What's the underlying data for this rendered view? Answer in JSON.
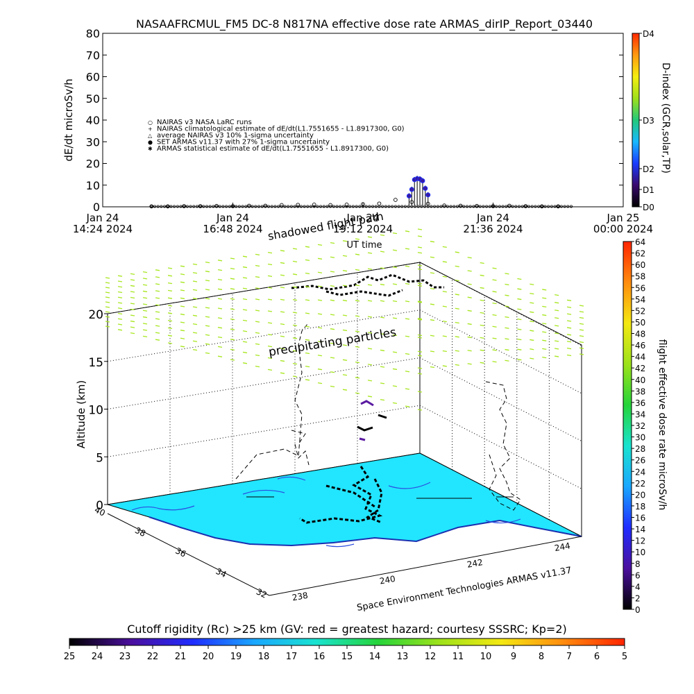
{
  "colors": {
    "d_index_scale": [
      "#000000",
      "#3a0a6e",
      "#1a3cff",
      "#19b9ff",
      "#22c97a",
      "#9fe01b",
      "#f5ee10",
      "#ff9a10",
      "#ff2a00"
    ],
    "dose_scale": [
      "#000000",
      "#4b0f9e",
      "#1f2cff",
      "#1aa7ff",
      "#19e3d0",
      "#25d43a",
      "#9de21a",
      "#f4e812",
      "#ff8c0e",
      "#ff2400"
    ],
    "rc_scale": [
      "#000000",
      "#4b0f9e",
      "#1f2cff",
      "#1aa7ff",
      "#19e3d0",
      "#25d43a",
      "#9de21a",
      "#f4e812",
      "#ff8c0e",
      "#ff2400"
    ],
    "floor": "#22e5ff",
    "particles": "#a7e61e"
  },
  "chart_data": [
    {
      "type": "scatter",
      "title": "NASAAFRCMUL_FM5 DC-8    N817NA effective dose rate ARMAS_dirIP_Report_03440",
      "ylabel": "dE/dt microSv/h",
      "xlabel": "UT time",
      "ylim": [
        0,
        80
      ],
      "yticks": [
        "0",
        "10",
        "20",
        "30",
        "40",
        "50",
        "60",
        "70",
        "80"
      ],
      "xlim_hours": [
        14.4,
        24.0
      ],
      "xticks": [
        {
          "date": "Jan 24",
          "time": "14:24 2024"
        },
        {
          "date": "Jan 24",
          "time": "16:48 2024"
        },
        {
          "date": "Jan 24",
          "time": "19:12 2024"
        },
        {
          "date": "Jan 24",
          "time": "21:36 2024"
        },
        {
          "date": "Jan 25",
          "time": "00:00 2024"
        }
      ],
      "legend": [
        "NAIRAS v3 NASA LaRC runs",
        "NAIRAS climatological estimate of dE/dt(L1.7551655 - L1.8917300, G0)",
        "average NAIRAS v3 10% 1-sigma uncertainty",
        "SET ARMAS v11.37 with 27% 1-sigma uncertainty",
        "ARMAS statistical estimate of dE/dt(L1.7551655 - L1.8917300, G0)"
      ],
      "legend_position": "center-left",
      "right_axis": {
        "label": "D-index (GCR,solar,TP)",
        "ticks": [
          "D0",
          "D1",
          "D2",
          "D3",
          "D4"
        ]
      },
      "series": [
        {
          "marker": "open-circle",
          "x_hours": [
            15.3,
            15.6,
            15.9,
            16.2,
            16.5,
            16.8,
            17.1,
            17.4,
            17.7,
            18.0,
            18.3,
            18.6,
            18.9,
            19.2,
            19.5,
            19.8,
            20.1,
            20.4,
            20.7,
            21.0,
            21.3,
            21.6,
            21.9,
            22.2,
            22.5,
            22.8
          ],
          "y": [
            0.2,
            0.2,
            0.3,
            0.3,
            0.4,
            0.3,
            0.5,
            0.5,
            0.8,
            0.9,
            1.0,
            0.8,
            1.0,
            1.2,
            1.5,
            3.2,
            2.2,
            1.4,
            0.6,
            0.5,
            0.4,
            0.3,
            0.5,
            0.3,
            0.2,
            0.2
          ]
        },
        {
          "marker": "filled-circle",
          "x_hours": [
            20.05,
            20.1,
            20.15,
            20.2,
            20.25,
            20.3,
            20.35,
            20.4
          ],
          "y": [
            5.0,
            8.0,
            12.5,
            13.0,
            12.8,
            12.0,
            8.5,
            5.5
          ]
        }
      ],
      "annotations": [
        "shadowed flight path"
      ]
    },
    {
      "type": "scatter",
      "title": "",
      "zlabel": "Altitude (km)",
      "zlim": [
        0,
        20
      ],
      "zticks": [
        "0",
        "5",
        "10",
        "15",
        "20"
      ],
      "lat_ticks": [
        "40",
        "38",
        "36",
        "34",
        "32"
      ],
      "lon_ticks": [
        "238",
        "240",
        "242",
        "244"
      ],
      "color_scale": {
        "label": "flight effective dose rate microSv/h",
        "ticks": [
          "0",
          "2",
          "4",
          "6",
          "8",
          "10",
          "12",
          "14",
          "16",
          "18",
          "20",
          "22",
          "24",
          "26",
          "28",
          "30",
          "32",
          "34",
          "36",
          "38",
          "40",
          "42",
          "44",
          "46",
          "48",
          "50",
          "52",
          "54",
          "56",
          "58",
          "60",
          "62",
          "64"
        ]
      },
      "annotations": [
        "precipitating particles"
      ],
      "credit": "Space Environment Technologies ARMAS v11.37",
      "cutoff_bar": {
        "label": "Cutoff rigidity (Rc) >25 km (GV: red = greatest hazard; courtesy SSSRC; Kp=2)",
        "ticks": [
          "25",
          "24",
          "23",
          "22",
          "21",
          "20",
          "19",
          "18",
          "17",
          "16",
          "15",
          "14",
          "13",
          "12",
          "11",
          "10",
          "9",
          "8",
          "7",
          "6",
          "5"
        ]
      }
    }
  ]
}
